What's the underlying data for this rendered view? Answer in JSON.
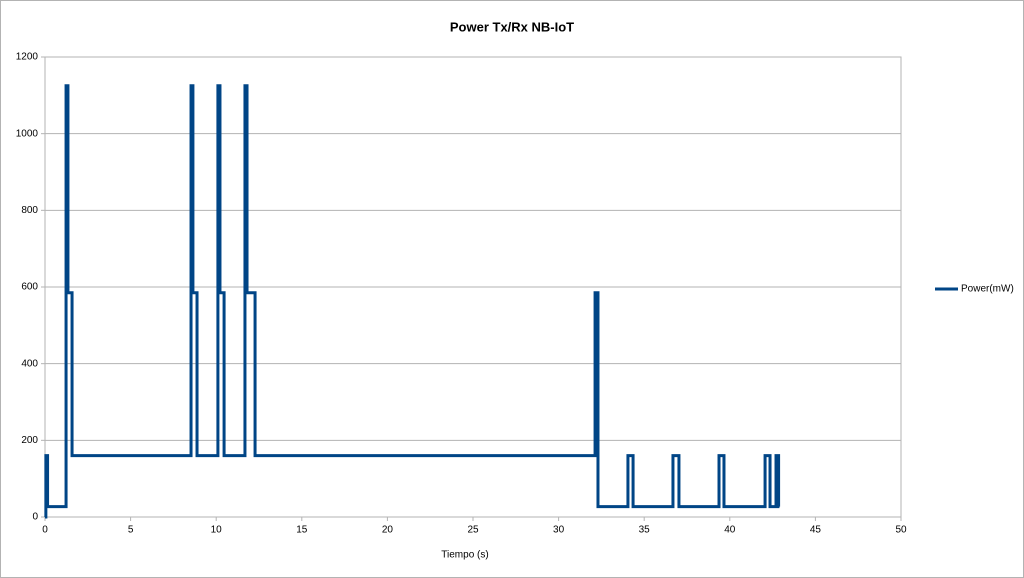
{
  "chart_data": {
    "type": "line",
    "title": "Power Tx/Rx NB-IoT",
    "x_label": "Tiempo (s)",
    "x": [
      0,
      0.05,
      0.05,
      0.15,
      0.15,
      1.23,
      1.23,
      1.34,
      1.34,
      1.58,
      1.58,
      8.53,
      8.53,
      8.64,
      8.64,
      8.88,
      8.88,
      10.1,
      10.1,
      10.22,
      10.22,
      10.46,
      10.46,
      11.68,
      11.68,
      11.8,
      11.8,
      12.27,
      12.27,
      32.13,
      32.13,
      32.3,
      32.3,
      34.05,
      34.05,
      34.35,
      34.35,
      36.68,
      36.68,
      37.03,
      37.03,
      39.37,
      39.37,
      39.66,
      39.66,
      42.06,
      42.06,
      42.35,
      42.35,
      42.7,
      42.7,
      42.85,
      42.85,
      42.9
    ],
    "series": [
      {
        "name": "Power(mW)",
        "color": "#004586",
        "values": [
          0,
          0,
          160,
          160,
          27,
          27,
          1125,
          1125,
          585,
          585,
          160,
          160,
          1125,
          1125,
          585,
          585,
          160,
          160,
          1125,
          1125,
          585,
          585,
          160,
          160,
          1125,
          1125,
          585,
          585,
          160,
          160,
          585,
          585,
          27,
          27,
          160,
          160,
          27,
          27,
          160,
          160,
          27,
          27,
          160,
          160,
          27,
          27,
          160,
          160,
          27,
          27,
          160,
          160,
          27,
          27
        ]
      }
    ],
    "xlim": [
      0,
      50
    ],
    "xticks": [
      0,
      5,
      10,
      15,
      20,
      25,
      30,
      35,
      40,
      45,
      50
    ],
    "ylim": [
      0,
      1200
    ],
    "yticks": [
      0,
      200,
      400,
      600,
      800,
      1000,
      1200
    ],
    "grid": true,
    "legend": "right"
  }
}
